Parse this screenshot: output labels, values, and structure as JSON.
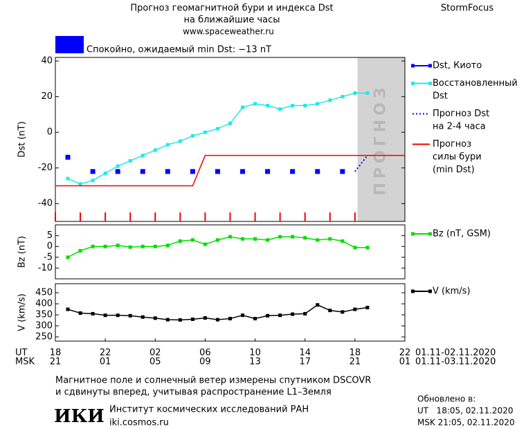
{
  "header": {
    "title_lines": [
      "Прогноз геомагнитной бури и индекса Dst",
      "на ближайшие часы"
    ],
    "site": "www.spaceweather.ru",
    "brand": "StormFocus"
  },
  "status": {
    "color": "#0000ff",
    "text": "Спокойно, ожидаемый min Dst: −13 nT"
  },
  "chart_data": [
    {
      "type": "line",
      "ylabel": "Dst (nT)",
      "xlim": [
        0,
        28
      ],
      "ylim": [
        -50,
        42
      ],
      "yticks": [
        -40,
        -20,
        0,
        20,
        40
      ],
      "minor_xticks": [
        0,
        2,
        4,
        6,
        8,
        10,
        12,
        14,
        16,
        18,
        20,
        22,
        24
      ],
      "minor_xtick_color": "#ee0000",
      "forecast": {
        "xlim": [
          24.2,
          28
        ],
        "label": "ПРОГНОЗ",
        "color": "#d3d3d3"
      },
      "series": [
        {
          "name": [
            "Dst, Киото"
          ],
          "color": "#0000ff",
          "marker": "square",
          "line": false,
          "x": [
            1,
            3,
            5,
            7,
            9,
            11,
            13,
            15,
            17,
            19,
            21,
            23
          ],
          "values": [
            -14,
            -22,
            -22,
            -22,
            -22,
            -22,
            -22,
            -22,
            -22,
            -22,
            -22,
            -22
          ]
        },
        {
          "name": [
            "Восстановленный",
            "Dst"
          ],
          "color": "#22e8e8",
          "marker": "square",
          "line": true,
          "x": [
            1,
            2,
            3,
            4,
            5,
            6,
            7,
            8,
            9,
            10,
            11,
            12,
            13,
            14,
            15,
            16,
            17,
            18,
            19,
            20,
            21,
            22,
            23,
            24,
            25
          ],
          "values": [
            -26,
            -29,
            -27,
            -23,
            -19,
            -16,
            -13,
            -10,
            -7,
            -5,
            -2,
            0,
            2,
            5,
            14,
            16,
            15,
            13,
            15,
            15,
            16,
            18,
            20,
            22,
            22
          ]
        },
        {
          "name": [
            "Прогноз Dst",
            "на 2-4 часа"
          ],
          "color": "#0000ff",
          "line": true,
          "dash": true,
          "x": [
            24,
            25
          ],
          "values": [
            -22,
            -13
          ]
        },
        {
          "name": [
            "Прогноз",
            "силы бури",
            "(min Dst)"
          ],
          "color": "#ee0000",
          "line": true,
          "x": [
            0,
            11,
            12,
            28
          ],
          "values": [
            -30,
            -30,
            -13,
            -13
          ]
        }
      ]
    },
    {
      "type": "line",
      "ylabel": "Bz (nT)",
      "xlim": [
        0,
        28
      ],
      "ylim": [
        -15,
        10
      ],
      "yticks": [
        -10,
        -5,
        0,
        5
      ],
      "series": [
        {
          "name": [
            "Bz (nT, GSM)"
          ],
          "color": "#00dd00",
          "marker": "square",
          "line": true,
          "x": [
            1,
            2,
            3,
            4,
            5,
            6,
            7,
            8,
            9,
            10,
            11,
            12,
            13,
            14,
            15,
            16,
            17,
            18,
            19,
            20,
            21,
            22,
            23,
            24,
            25
          ],
          "values": [
            -5,
            -2,
            0,
            0,
            0.5,
            -0.3,
            0,
            0,
            0.5,
            2.5,
            3,
            1,
            3,
            4.5,
            3.5,
            3.5,
            3,
            4.5,
            4.5,
            4,
            3,
            3.5,
            2.5,
            -0.5,
            -0.5
          ]
        }
      ]
    },
    {
      "type": "line",
      "ylabel": "V (km/s)",
      "xlim": [
        0,
        28
      ],
      "ylim": [
        231,
        491
      ],
      "yticks": [
        250,
        300,
        350,
        400,
        450
      ],
      "xlabel": "UT",
      "x2label": "MSK",
      "xrange_label": "01.11-02.11.2020",
      "x2range_label": "01.11-03.11.2020",
      "xticks": [
        {
          "value": 0,
          "label": "18"
        },
        {
          "value": 4,
          "label": "22"
        },
        {
          "value": 8,
          "label": "02"
        },
        {
          "value": 12,
          "label": "06"
        },
        {
          "value": 16,
          "label": "10"
        },
        {
          "value": 20,
          "label": "14"
        },
        {
          "value": 24,
          "label": "18"
        },
        {
          "value": 28,
          "label": "22"
        }
      ],
      "x2ticks": [
        {
          "value": 0,
          "label": "21"
        },
        {
          "value": 4,
          "label": "01"
        },
        {
          "value": 8,
          "label": "05"
        },
        {
          "value": 12,
          "label": "09"
        },
        {
          "value": 16,
          "label": "13"
        },
        {
          "value": 20,
          "label": "17"
        },
        {
          "value": 24,
          "label": "21"
        },
        {
          "value": 28,
          "label": "01"
        }
      ],
      "series": [
        {
          "name": [
            "V (km/s)"
          ],
          "color": "#000000",
          "marker": "square",
          "line": true,
          "x": [
            1,
            2,
            3,
            4,
            5,
            6,
            7,
            8,
            9,
            10,
            11,
            12,
            13,
            14,
            15,
            16,
            17,
            18,
            19,
            20,
            21,
            22,
            23,
            24,
            25
          ],
          "values": [
            375,
            358,
            355,
            348,
            348,
            346,
            340,
            335,
            328,
            327,
            330,
            336,
            328,
            333,
            348,
            333,
            346,
            348,
            353,
            355,
            395,
            370,
            363,
            375,
            383
          ]
        }
      ]
    }
  ],
  "footer": {
    "note_lines": [
      "Магнитное поле и солнечный ветер измерены спутником DSCOVR",
      "и сдвинуты вперед, учитывая распространение L1–Земля"
    ],
    "logo": "ИКИ",
    "institute": "Институт космических исследований РАН",
    "institute_site": "iki.cosmos.ru",
    "updated_lines": [
      "Обновлено в:",
      "UT   18:05, 02.11.2020",
      "MSK 21:05, 02.11.2020"
    ]
  }
}
